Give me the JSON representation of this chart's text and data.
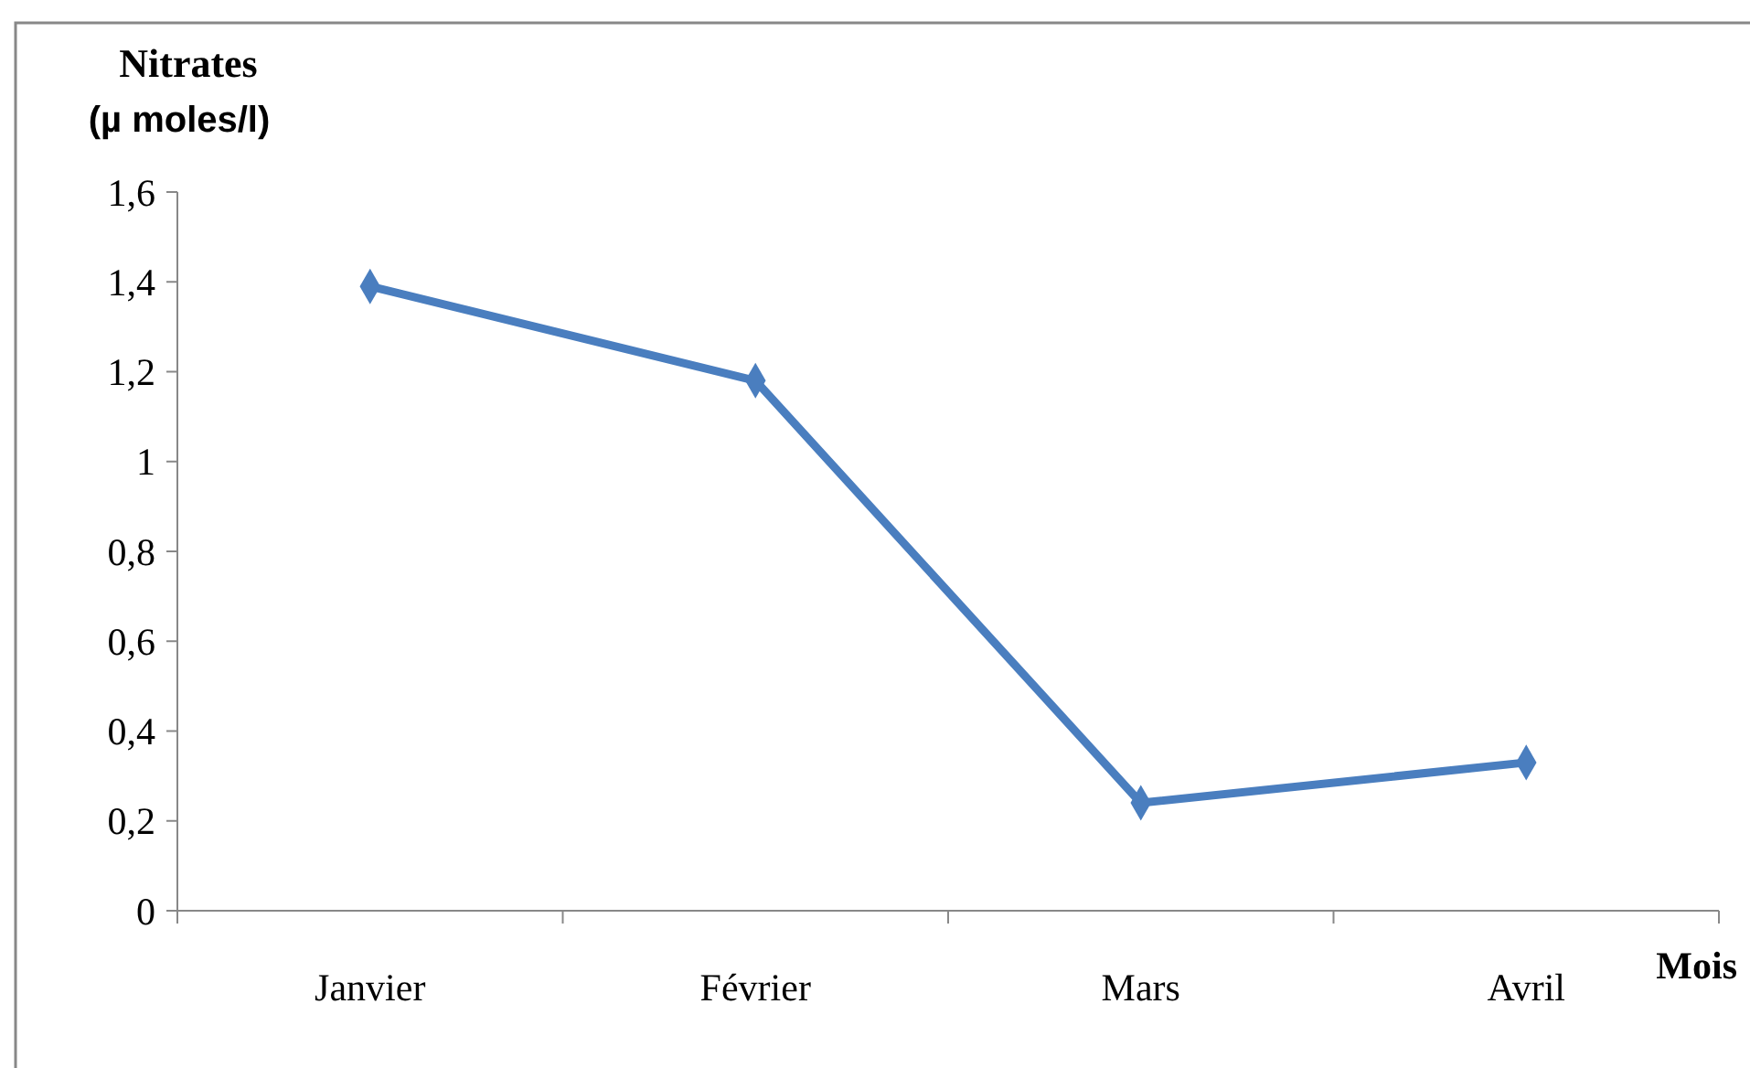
{
  "chart_data": {
    "type": "line",
    "ylabel": "Nitrates\n(µ moles/l)",
    "xlabel": "Mois",
    "categories": [
      "Janvier",
      "Février",
      "Mars",
      "Avril"
    ],
    "series": [
      {
        "color": "#4a7ebf",
        "values": [
          1.39,
          1.18,
          0.24,
          0.33
        ]
      }
    ],
    "ylim": [
      0,
      1.6
    ],
    "yticks": [
      0,
      {
        "value": 0.2,
        "label": "0,2"
      },
      {
        "value": 0.4,
        "label": "0,4"
      },
      {
        "value": 0.6,
        "label": "0,6"
      },
      {
        "value": 0.8,
        "label": "0,8"
      },
      1,
      {
        "value": 1.2,
        "label": "1,2"
      },
      {
        "value": 1.4,
        "label": "1,4"
      },
      {
        "value": 1.6,
        "label": "1,6"
      }
    ],
    "marker": "diamond",
    "line_style": "solid"
  }
}
